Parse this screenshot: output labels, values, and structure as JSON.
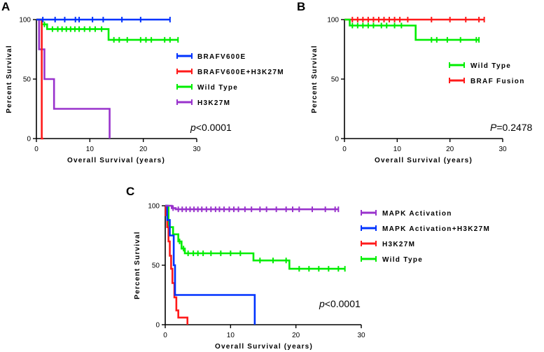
{
  "chart_data": [
    {
      "type": "line",
      "subtype": "kaplan-meier",
      "panel": "A",
      "xlabel": "Overall Survival (years)",
      "ylabel": "Percent Survival",
      "xlim": [
        0,
        30
      ],
      "ylim": [
        0,
        100
      ],
      "xticks": [
        "0",
        "10",
        "20",
        "30"
      ],
      "yticks": [
        "0",
        "50",
        "100"
      ],
      "pvalue": {
        "prefix": "p",
        "text": "<0.0001"
      },
      "legend_position": "center-right",
      "series": [
        {
          "name": "BRAFV600E",
          "color": "#0033ff",
          "steps": [
            [
              0,
              100
            ],
            [
              25,
              100
            ]
          ],
          "censor_x": [
            1.2,
            3.5,
            5.3,
            7.3,
            8.0,
            10.5,
            12.5,
            16.0,
            19.5,
            25.0
          ]
        },
        {
          "name": "BRAFV600E+H3K27M",
          "color": "#ff1a1a",
          "steps": [
            [
              0,
              100
            ],
            [
              1.0,
              100
            ],
            [
              1.0,
              0
            ],
            [
              1.3,
              0
            ]
          ],
          "censor_x": []
        },
        {
          "name": "Wild Type",
          "color": "#00ee00",
          "steps": [
            [
              0,
              100
            ],
            [
              1.0,
              100
            ],
            [
              1.0,
              96
            ],
            [
              2.0,
              96
            ],
            [
              2.0,
              92
            ],
            [
              13.5,
              92
            ],
            [
              13.5,
              83
            ],
            [
              26.5,
              83
            ]
          ],
          "censor_x": [
            1.5,
            3.0,
            4.0,
            4.8,
            5.6,
            6.4,
            7.2,
            8.0,
            9.0,
            10.0,
            11.0,
            12.2,
            14.5,
            15.5,
            17.0,
            19.5,
            20.5,
            21.5,
            24.0,
            25.0,
            26.5
          ]
        },
        {
          "name": "H3K27M",
          "color": "#9933cc",
          "steps": [
            [
              0,
              100
            ],
            [
              0.5,
              100
            ],
            [
              0.5,
              75
            ],
            [
              1.5,
              75
            ],
            [
              1.5,
              50
            ],
            [
              3.3,
              50
            ],
            [
              3.3,
              25
            ],
            [
              13.7,
              25
            ],
            [
              13.7,
              0
            ]
          ],
          "censor_x": []
        }
      ]
    },
    {
      "type": "line",
      "subtype": "kaplan-meier",
      "panel": "B",
      "xlabel": "Overall Survival (years)",
      "ylabel": "Percent Survival",
      "xlim": [
        0,
        30
      ],
      "ylim": [
        0,
        100
      ],
      "xticks": [
        "0",
        "10",
        "20",
        "30"
      ],
      "yticks": [
        "0",
        "50",
        "100"
      ],
      "pvalue": {
        "prefix": "P",
        "text": "=0.2478"
      },
      "legend_position": "center-right",
      "series": [
        {
          "name": "Wild Type",
          "color": "#00ee00",
          "steps": [
            [
              0,
              100
            ],
            [
              1.0,
              100
            ],
            [
              1.0,
              95
            ],
            [
              13.5,
              95
            ],
            [
              13.5,
              83
            ],
            [
              25.5,
              83
            ]
          ],
          "censor_x": [
            1.5,
            2.5,
            3.5,
            4.5,
            5.5,
            7.0,
            8.0,
            9.5,
            10.8,
            16.5,
            17.5,
            19.5,
            22.0,
            25.0,
            25.5
          ]
        },
        {
          "name": "BRAF Fusion",
          "color": "#ff1a1a",
          "steps": [
            [
              0,
              100
            ],
            [
              26.5,
              100
            ]
          ],
          "censor_x": [
            1.5,
            2.5,
            3.5,
            4.5,
            5.5,
            6.5,
            7.5,
            8.5,
            9.5,
            10.5,
            12.0,
            16.5,
            20.0,
            23.0,
            25.5,
            26.5
          ]
        }
      ]
    },
    {
      "type": "line",
      "subtype": "kaplan-meier",
      "panel": "C",
      "xlabel": "Overall Survival (years)",
      "ylabel": "Percent Survival",
      "xlim": [
        0,
        30
      ],
      "ylim": [
        0,
        100
      ],
      "xticks": [
        "0",
        "10",
        "20",
        "30"
      ],
      "yticks": [
        "0",
        "50",
        "100"
      ],
      "pvalue": {
        "prefix": "p",
        "text": "<0.0001"
      },
      "legend_position": "top-right",
      "series": [
        {
          "name": "MAPK Activation",
          "color": "#9933cc",
          "steps": [
            [
              0,
              100
            ],
            [
              1.0,
              100
            ],
            [
              1.0,
              98
            ],
            [
              1.6,
              98
            ],
            [
              1.6,
              97
            ],
            [
              26.5,
              97
            ]
          ],
          "censor_x": [
            1.2,
            2.0,
            2.6,
            3.2,
            3.8,
            4.4,
            5.0,
            5.6,
            6.3,
            7.0,
            7.7,
            8.3,
            9.0,
            9.8,
            10.5,
            11.2,
            12.2,
            13.2,
            14.5,
            15.5,
            17.0,
            18.5,
            19.5,
            20.5,
            22.5,
            24.5,
            26.0,
            26.5
          ]
        },
        {
          "name": "MAPK Activation+H3K27M",
          "color": "#0033ff",
          "steps": [
            [
              0,
              100
            ],
            [
              0.3,
              100
            ],
            [
              0.3,
              88
            ],
            [
              0.7,
              88
            ],
            [
              0.7,
              75
            ],
            [
              1.3,
              75
            ],
            [
              1.3,
              50
            ],
            [
              1.5,
              50
            ],
            [
              1.5,
              25
            ],
            [
              13.7,
              25
            ],
            [
              13.7,
              0
            ]
          ],
          "censor_x": []
        },
        {
          "name": "H3K27M",
          "color": "#ff1a1a",
          "steps": [
            [
              0,
              100
            ],
            [
              0.1,
              100
            ],
            [
              0.1,
              92
            ],
            [
              0.3,
              92
            ],
            [
              0.3,
              82
            ],
            [
              0.5,
              82
            ],
            [
              0.5,
              70
            ],
            [
              0.7,
              70
            ],
            [
              0.7,
              58
            ],
            [
              0.9,
              58
            ],
            [
              0.9,
              47
            ],
            [
              1.1,
              47
            ],
            [
              1.1,
              35
            ],
            [
              1.4,
              35
            ],
            [
              1.4,
              23
            ],
            [
              1.7,
              23
            ],
            [
              1.7,
              12
            ],
            [
              2.0,
              12
            ],
            [
              2.0,
              6
            ],
            [
              3.4,
              6
            ],
            [
              3.4,
              0
            ]
          ],
          "censor_x": []
        },
        {
          "name": "Wild Type",
          "color": "#00ee00",
          "steps": [
            [
              0,
              100
            ],
            [
              0.5,
              100
            ],
            [
              0.5,
              82
            ],
            [
              1.2,
              82
            ],
            [
              1.2,
              76
            ],
            [
              2.0,
              76
            ],
            [
              2.0,
              70
            ],
            [
              2.5,
              70
            ],
            [
              2.5,
              64
            ],
            [
              3.0,
              64
            ],
            [
              3.0,
              60
            ],
            [
              13.5,
              60
            ],
            [
              13.5,
              54
            ],
            [
              19.0,
              54
            ],
            [
              19.0,
              47
            ],
            [
              27.5,
              47
            ]
          ],
          "censor_x": [
            2.2,
            2.8,
            3.5,
            4.3,
            5.0,
            5.8,
            7.0,
            8.5,
            10.0,
            11.5,
            14.5,
            16.5,
            18.5,
            20.5,
            22.0,
            23.5,
            25.0,
            26.5,
            27.5
          ]
        }
      ]
    }
  ]
}
